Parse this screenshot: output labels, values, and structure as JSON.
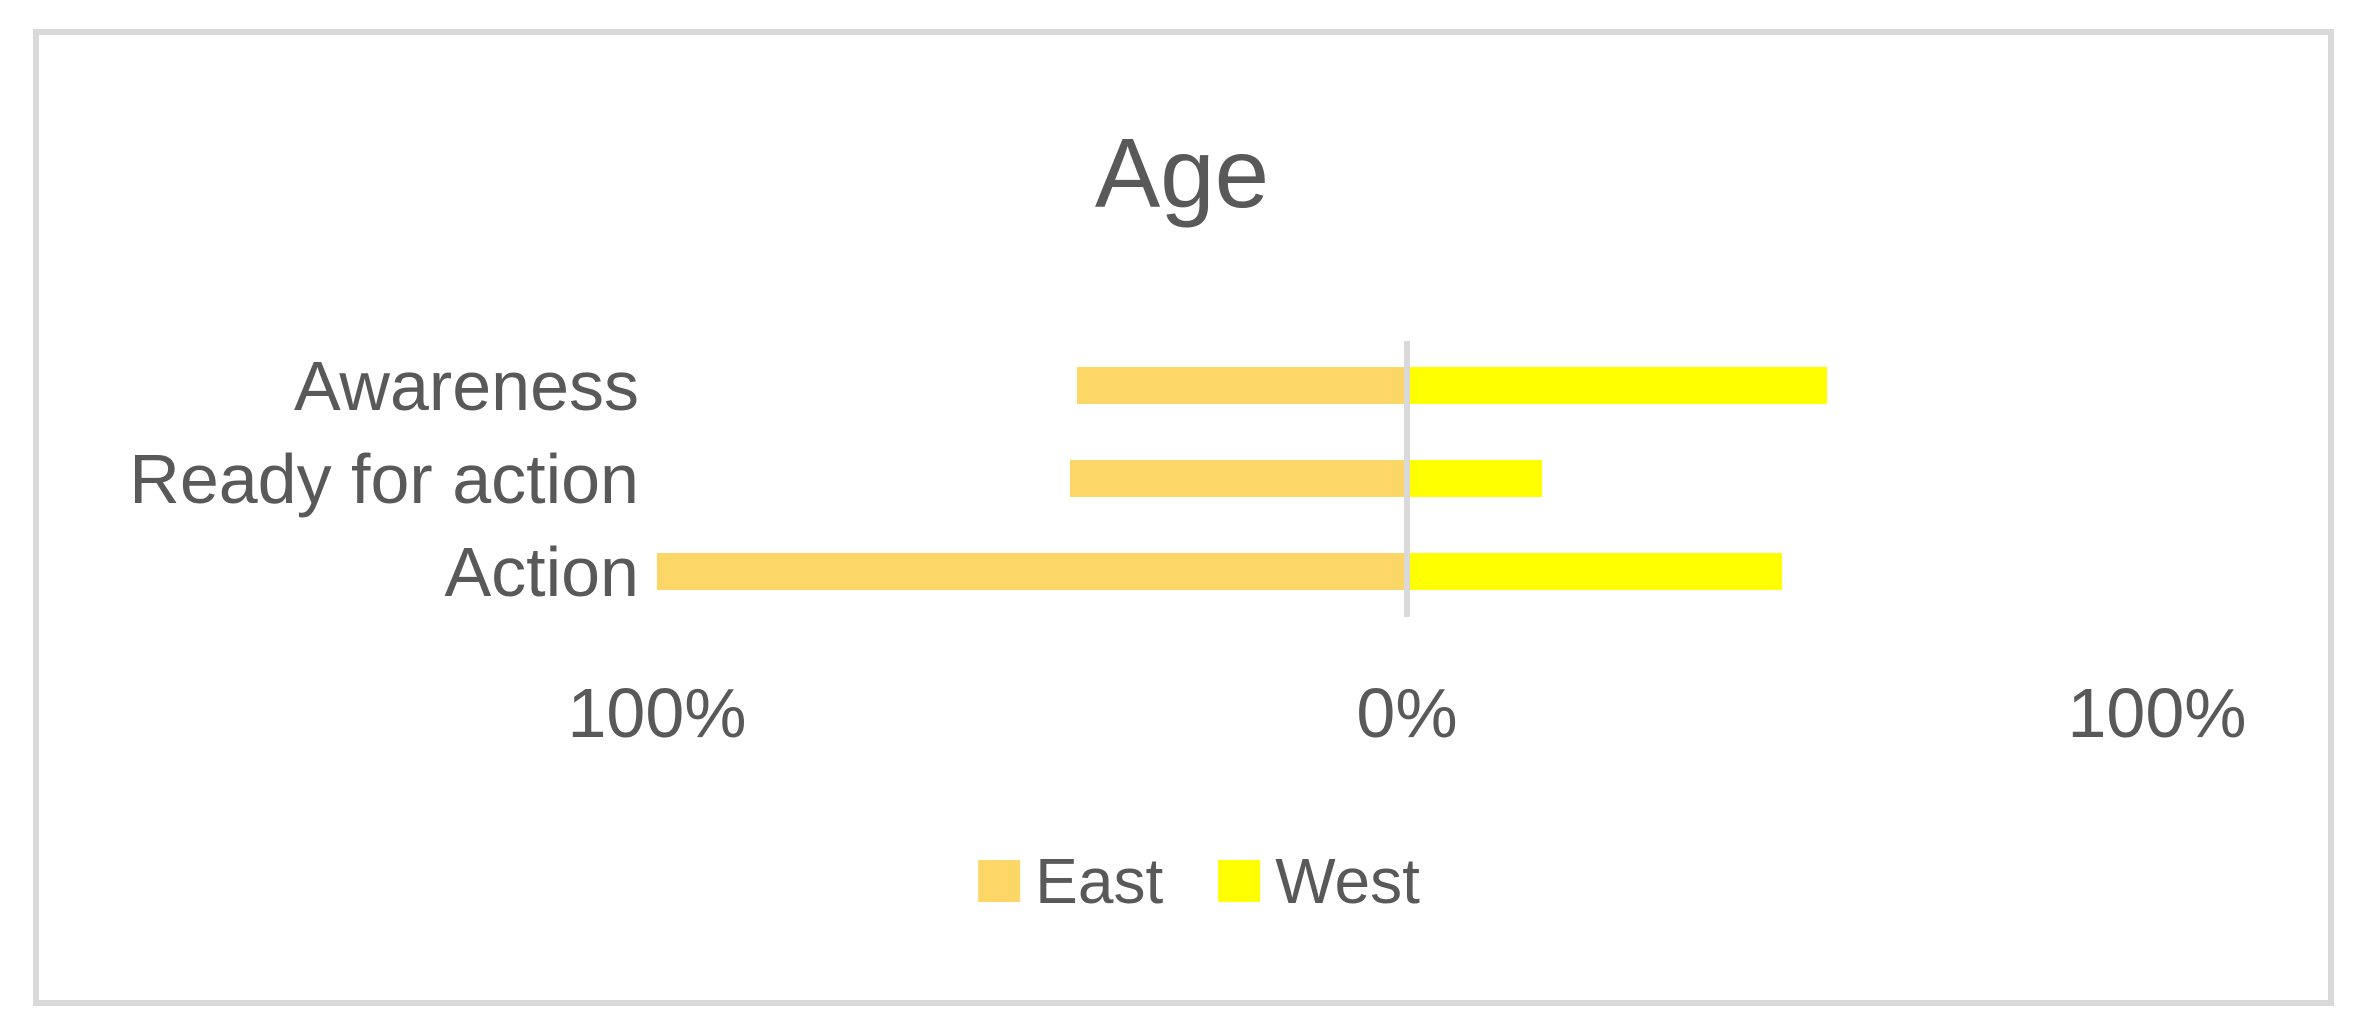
{
  "chart_data": {
    "type": "bar",
    "variant": "horizontal-diverging-tornado",
    "title": "Age",
    "categories": [
      "Awareness",
      "Ready for action",
      "Action"
    ],
    "series": [
      {
        "name": "East",
        "color": "#FCD666",
        "direction": "left",
        "values": [
          44,
          45,
          100
        ]
      },
      {
        "name": "West",
        "color": "#FFFF00",
        "direction": "right",
        "values": [
          56,
          18,
          50
        ]
      }
    ],
    "x_axis": {
      "tick_labels": [
        "100%",
        "0%",
        "100%"
      ],
      "range_pct": [
        -100,
        100
      ],
      "unit": "percent"
    },
    "legend": {
      "position": "bottom",
      "entries": [
        "East",
        "West"
      ]
    },
    "grid": "off",
    "colors": {
      "text": "#595959",
      "axis_line": "#D9D9D9",
      "frame_border": "#D9D9D9",
      "background": "#FFFFFF"
    }
  }
}
